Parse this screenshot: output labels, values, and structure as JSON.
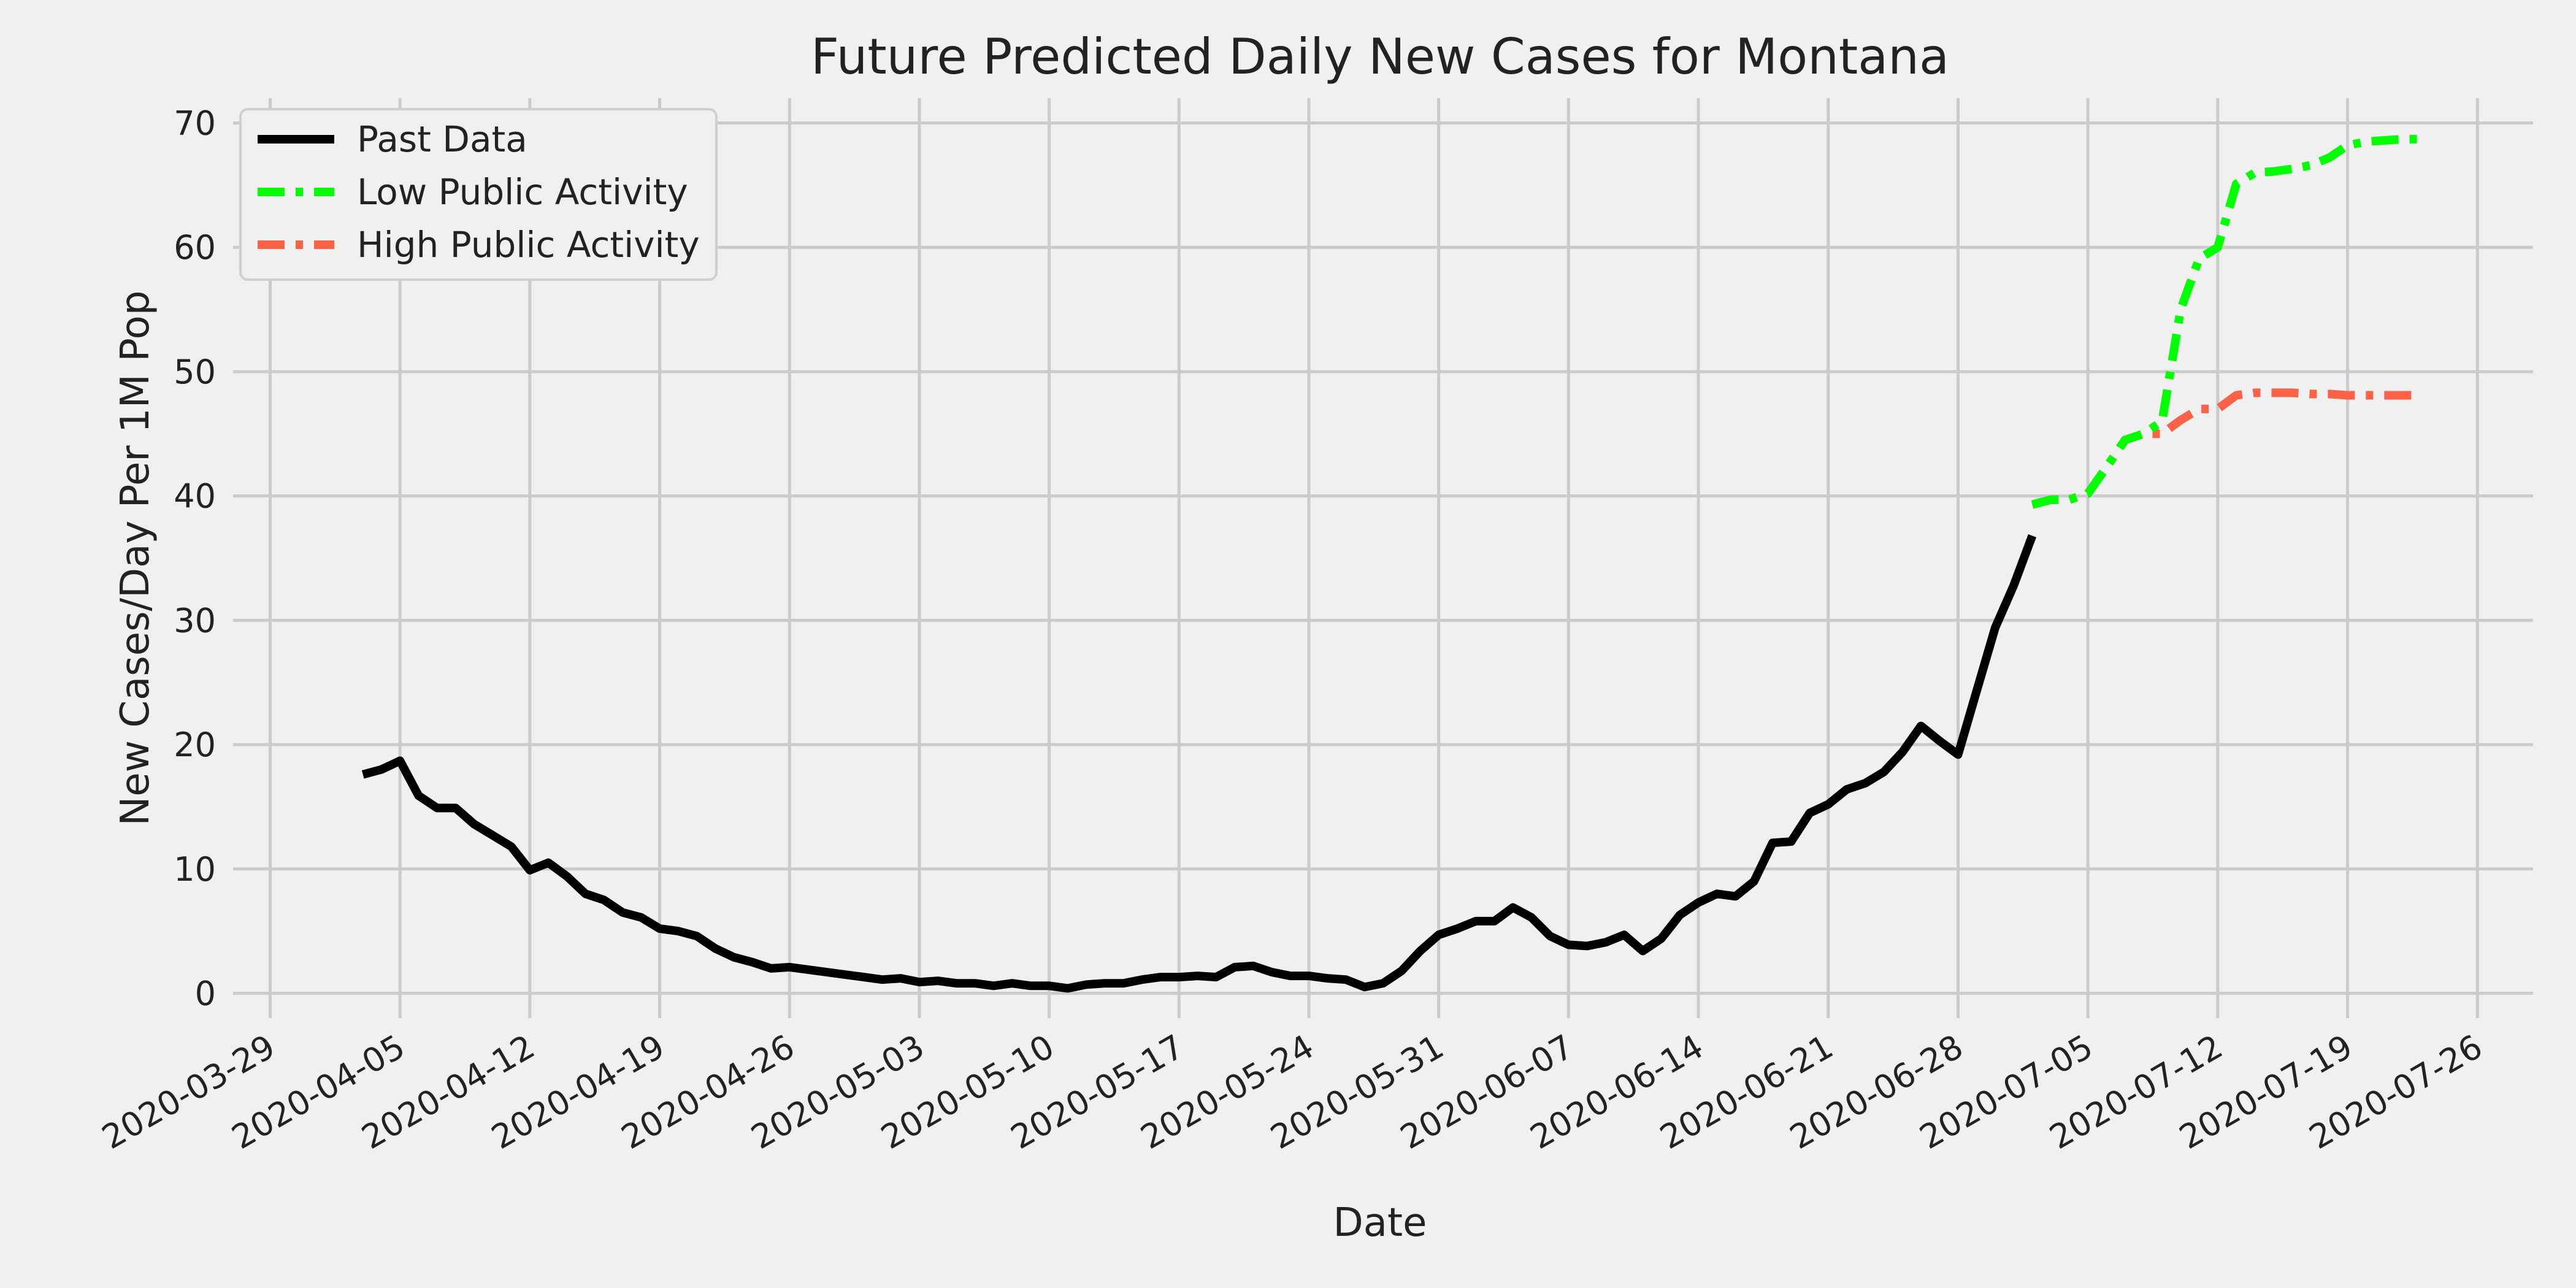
{
  "chart_data": {
    "type": "line",
    "title": "Future Predicted Daily New Cases for Montana",
    "xlabel": "Date",
    "ylabel": "New Cases/Day Per 1M Pop",
    "xlim": [
      "2020-03-27",
      "2020-07-29"
    ],
    "ylim": [
      -2,
      72
    ],
    "grid": true,
    "legend_position": "top-left",
    "x_ticks": [
      "2020-03-29",
      "2020-04-05",
      "2020-04-12",
      "2020-04-19",
      "2020-04-26",
      "2020-05-03",
      "2020-05-10",
      "2020-05-17",
      "2020-05-24",
      "2020-05-31",
      "2020-06-07",
      "2020-06-14",
      "2020-06-21",
      "2020-06-28",
      "2020-07-05",
      "2020-07-12",
      "2020-07-19",
      "2020-07-26"
    ],
    "y_ticks": [
      0,
      10,
      20,
      30,
      40,
      50,
      60,
      70
    ],
    "series": [
      {
        "name": "Past Data",
        "color": "#000000",
        "style": "solid",
        "x": [
          "2020-04-03",
          "2020-04-04",
          "2020-04-05",
          "2020-04-06",
          "2020-04-07",
          "2020-04-08",
          "2020-04-09",
          "2020-04-10",
          "2020-04-11",
          "2020-04-12",
          "2020-04-13",
          "2020-04-14",
          "2020-04-15",
          "2020-04-16",
          "2020-04-17",
          "2020-04-18",
          "2020-04-19",
          "2020-04-20",
          "2020-04-21",
          "2020-04-22",
          "2020-04-23",
          "2020-04-24",
          "2020-04-25",
          "2020-04-26",
          "2020-04-27",
          "2020-04-28",
          "2020-04-29",
          "2020-04-30",
          "2020-05-01",
          "2020-05-02",
          "2020-05-03",
          "2020-05-04",
          "2020-05-05",
          "2020-05-06",
          "2020-05-07",
          "2020-05-08",
          "2020-05-09",
          "2020-05-10",
          "2020-05-11",
          "2020-05-12",
          "2020-05-13",
          "2020-05-14",
          "2020-05-15",
          "2020-05-16",
          "2020-05-17",
          "2020-05-18",
          "2020-05-19",
          "2020-05-20",
          "2020-05-21",
          "2020-05-22",
          "2020-05-23",
          "2020-05-24",
          "2020-05-25",
          "2020-05-26",
          "2020-05-27",
          "2020-05-28",
          "2020-05-29",
          "2020-05-30",
          "2020-05-31",
          "2020-06-01",
          "2020-06-02",
          "2020-06-03",
          "2020-06-04",
          "2020-06-05",
          "2020-06-06",
          "2020-06-07",
          "2020-06-08",
          "2020-06-09",
          "2020-06-10",
          "2020-06-11",
          "2020-06-12",
          "2020-06-13",
          "2020-06-14",
          "2020-06-15",
          "2020-06-16",
          "2020-06-17",
          "2020-06-18",
          "2020-06-19",
          "2020-06-20",
          "2020-06-21",
          "2020-06-22",
          "2020-06-23",
          "2020-06-24",
          "2020-06-25",
          "2020-06-26",
          "2020-06-27",
          "2020-06-28",
          "2020-06-29",
          "2020-06-30",
          "2020-07-01",
          "2020-07-02"
        ],
        "values": [
          17.6,
          18.0,
          18.7,
          15.9,
          14.9,
          14.9,
          13.6,
          12.7,
          11.8,
          9.9,
          10.5,
          9.4,
          8.0,
          7.5,
          6.5,
          6.1,
          5.2,
          5.0,
          4.6,
          3.6,
          2.9,
          2.5,
          2.0,
          2.1,
          1.9,
          1.7,
          1.5,
          1.3,
          1.1,
          1.2,
          0.9,
          1.0,
          0.8,
          0.8,
          0.6,
          0.8,
          0.6,
          0.6,
          0.4,
          0.7,
          0.8,
          0.8,
          1.1,
          1.3,
          1.3,
          1.4,
          1.3,
          2.1,
          2.2,
          1.7,
          1.4,
          1.4,
          1.2,
          1.1,
          0.5,
          0.8,
          1.8,
          3.4,
          4.7,
          5.2,
          5.8,
          5.8,
          6.9,
          6.1,
          4.6,
          3.9,
          3.8,
          4.1,
          4.7,
          3.4,
          4.4,
          6.3,
          7.3,
          8.0,
          7.8,
          9.0,
          12.1,
          12.2,
          14.5,
          15.2,
          16.4,
          16.9,
          17.8,
          19.4,
          21.5,
          20.3,
          19.2,
          24.3,
          29.4,
          32.8,
          36.8
        ]
      },
      {
        "name": "Low Public Activity",
        "color": "#00ff00",
        "style": "dashdot",
        "x": [
          "2020-07-02",
          "2020-07-03",
          "2020-07-04",
          "2020-07-05",
          "2020-07-06",
          "2020-07-07",
          "2020-07-08",
          "2020-07-09",
          "2020-07-10",
          "2020-07-11",
          "2020-07-12",
          "2020-07-13",
          "2020-07-14",
          "2020-07-15",
          "2020-07-16",
          "2020-07-17",
          "2020-07-18",
          "2020-07-19",
          "2020-07-20",
          "2020-07-21",
          "2020-07-22",
          "2020-07-23"
        ],
        "values": [
          39.3,
          39.7,
          39.7,
          40.2,
          42.3,
          44.5,
          45.0,
          46.0,
          55.0,
          59.1,
          60.0,
          65.1,
          66.0,
          66.1,
          66.3,
          66.6,
          67.2,
          68.2,
          68.5,
          68.6,
          68.7,
          68.7
        ]
      },
      {
        "name": "High Public Activity",
        "color": "#fc6346",
        "style": "dashdot",
        "x": [
          "2020-07-02",
          "2020-07-03",
          "2020-07-04",
          "2020-07-05",
          "2020-07-06",
          "2020-07-07",
          "2020-07-08",
          "2020-07-09",
          "2020-07-10",
          "2020-07-11",
          "2020-07-12",
          "2020-07-13",
          "2020-07-14",
          "2020-07-15",
          "2020-07-16",
          "2020-07-17",
          "2020-07-18",
          "2020-07-19",
          "2020-07-20",
          "2020-07-21",
          "2020-07-22",
          "2020-07-23"
        ],
        "values": [
          39.3,
          39.7,
          39.7,
          40.2,
          42.3,
          44.5,
          45.0,
          45.0,
          46.1,
          47.0,
          47.0,
          48.1,
          48.3,
          48.3,
          48.3,
          48.2,
          48.2,
          48.1,
          48.1,
          48.1,
          48.1,
          48.1
        ]
      }
    ]
  }
}
